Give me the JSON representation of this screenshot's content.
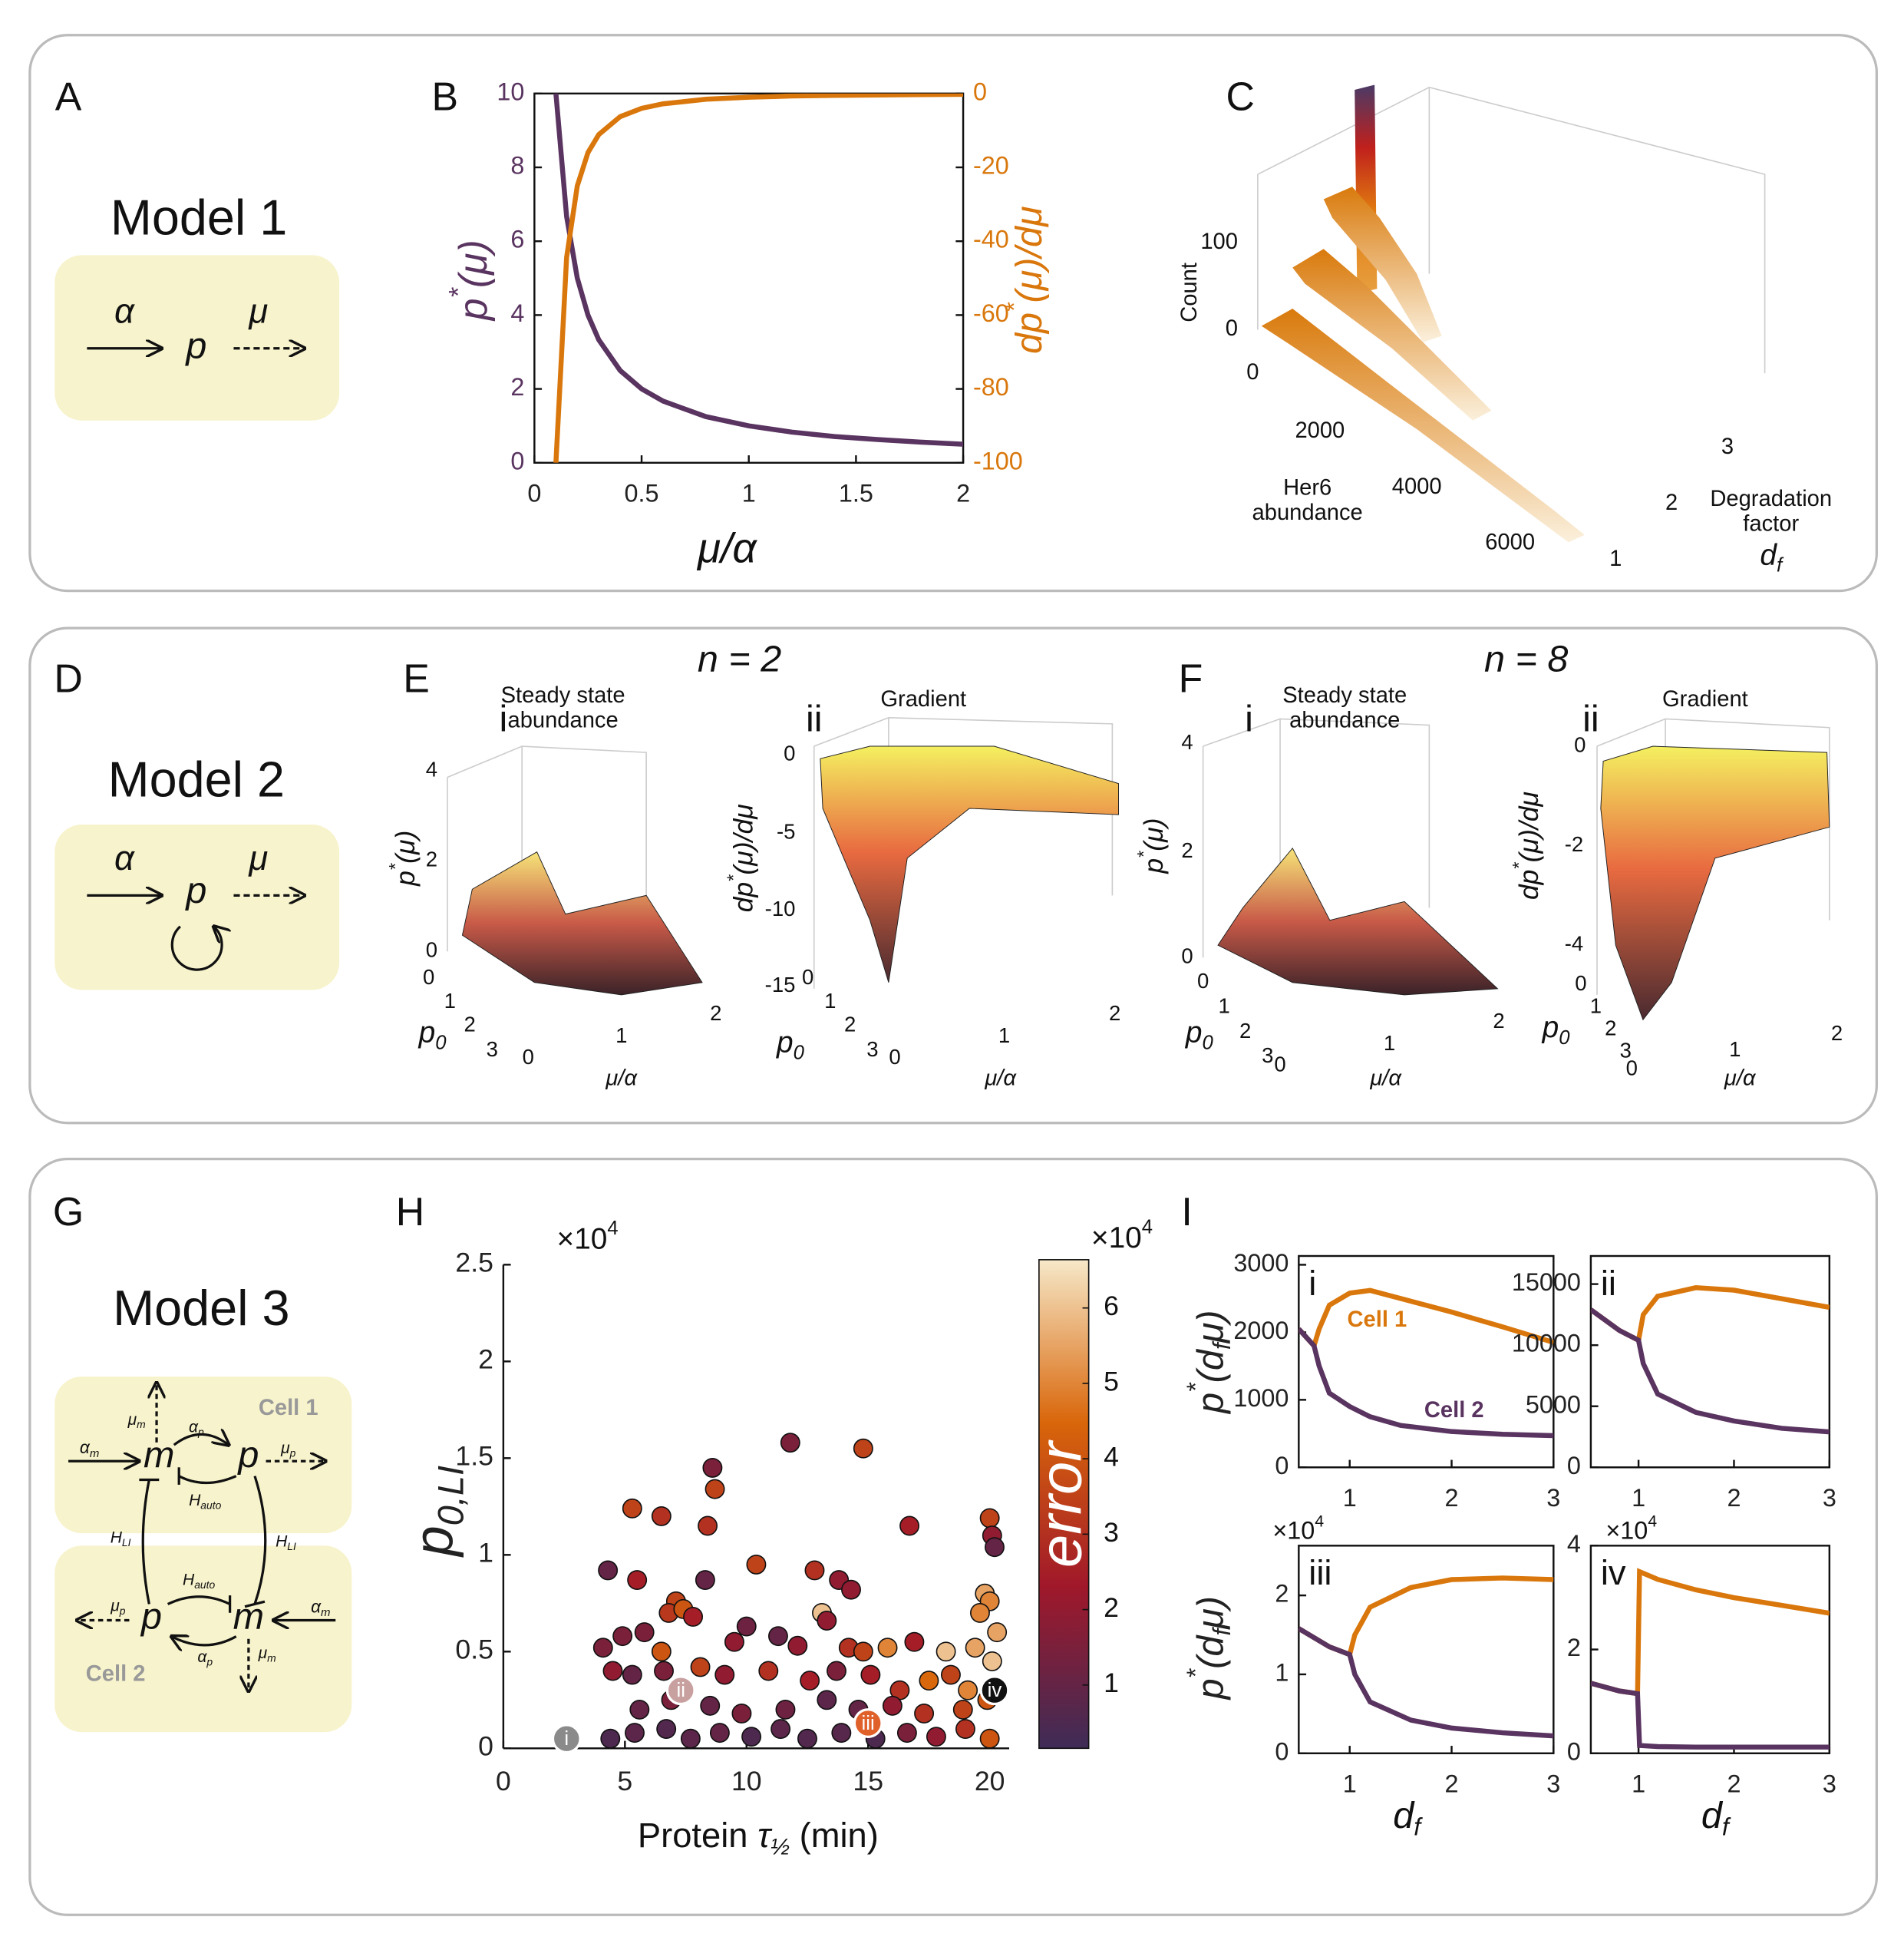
{
  "panel_labels": [
    "A",
    "B",
    "C",
    "D",
    "E",
    "F",
    "G",
    "H",
    "I"
  ],
  "models": [
    {
      "title": "Model 1",
      "labels": [
        "α",
        "p",
        "μ"
      ]
    },
    {
      "title": "Model 2",
      "labels": [
        "α",
        "p",
        "μ"
      ]
    },
    {
      "title": "Model 3",
      "cells": [
        "Cell 1",
        "Cell 2"
      ],
      "labels": [
        [
          {
            "t": "α"
          },
          {
            "t": "m",
            "s": "sub"
          }
        ],
        [
          {
            "t": "μ"
          },
          {
            "t": "m",
            "s": "sub"
          }
        ],
        "m",
        [
          {
            "t": "α"
          },
          {
            "t": "p",
            "s": "sub"
          }
        ],
        "p",
        [
          {
            "t": "μ"
          },
          {
            "t": "p",
            "s": "sub"
          }
        ],
        [
          {
            "t": "H"
          },
          {
            "t": "auto",
            "s": "sub"
          }
        ],
        [
          {
            "t": "H"
          },
          {
            "t": "LI",
            "s": "sub"
          }
        ],
        [
          {
            "t": "H"
          },
          {
            "t": "LI",
            "s": "sub"
          }
        ],
        [
          {
            "t": "H"
          },
          {
            "t": "auto",
            "s": "sub"
          }
        ],
        [
          {
            "t": "μ"
          },
          {
            "t": "p",
            "s": "sub"
          }
        ],
        "p",
        "m",
        [
          {
            "t": "α"
          },
          {
            "t": "m",
            "s": "sub"
          }
        ],
        [
          {
            "t": "α"
          },
          {
            "t": "p",
            "s": "sub"
          }
        ],
        [
          {
            "t": "μ"
          },
          {
            "t": "m",
            "s": "sub"
          }
        ]
      ]
    }
  ],
  "chart_data": [
    {
      "type": "line",
      "axis_colors": true,
      "box": true,
      "x": [
        0.1,
        0.15,
        0.2,
        0.25,
        0.3,
        0.4,
        0.5,
        0.6,
        0.8,
        1,
        1.2,
        1.4,
        1.6,
        1.8,
        2
      ],
      "series": [
        {
          "color": "#5a3460",
          "values": [
            10,
            6.67,
            5,
            4,
            3.33,
            2.5,
            2,
            1.67,
            1.25,
            1,
            0.83,
            0.71,
            0.63,
            0.56,
            0.5
          ]
        },
        {
          "color": "#d9770c",
          "axis": "y2",
          "values": [
            -100,
            -44.4,
            -25,
            -16,
            -11.1,
            -6.25,
            -4,
            -2.78,
            -1.56,
            -1,
            -0.69,
            -0.51,
            -0.39,
            -0.31,
            -0.25
          ]
        }
      ],
      "xlim": [
        0,
        2
      ],
      "xticks": [
        0,
        0.5,
        1,
        1.5,
        2
      ],
      "ylim": [
        0,
        10
      ],
      "yticks": [
        0,
        2,
        4,
        6,
        8,
        10
      ],
      "y2lim": [
        -100,
        0
      ],
      "y2ticks": [
        -100,
        -80,
        -60,
        -40,
        -20,
        0
      ],
      "xlabel": "μ/α",
      "ylabel": [
        {
          "t": "p"
        },
        {
          "t": "*",
          "s": "sup"
        },
        {
          "t": "(μ)"
        }
      ],
      "y2label": [
        {
          "t": "dp"
        },
        {
          "t": "*",
          "s": "sup"
        },
        {
          "t": "(μ)/dμ"
        }
      ]
    },
    {
      "type": "bar3d",
      "zlabel": "Count",
      "zticks": [
        0,
        100
      ],
      "xlabel": [
        "Her6",
        "abundance"
      ],
      "xticks": [
        0,
        2000,
        4000,
        6000
      ],
      "ylabel": [
        "Degradation",
        "factor"
      ],
      "ysymbol": [
        {
          "t": "d"
        },
        {
          "t": "f",
          "s": "sub"
        }
      ],
      "yticks": [
        1,
        2,
        3
      ]
    },
    {
      "type": "surface",
      "label": "i",
      "title": [
        "Steady state",
        "abundance"
      ],
      "subtitle": "n = 2",
      "zticks": [
        0,
        2,
        4
      ],
      "zlabel": [
        {
          "t": "p"
        },
        {
          "t": "*",
          "s": "sup"
        },
        {
          "t": "(μ)"
        }
      ],
      "yticks": [
        0,
        1,
        2,
        3
      ],
      "ylabel": [
        {
          "t": "p"
        },
        {
          "t": "0",
          "s": "sub"
        }
      ],
      "xticks": [
        0,
        1,
        2
      ],
      "xlabel": "μ/α"
    },
    {
      "type": "surface",
      "label": "ii",
      "title": [
        "Gradient"
      ],
      "zticks": [
        0,
        -5,
        -10,
        -15
      ],
      "zlabel": [
        {
          "t": "dp"
        },
        {
          "t": "*",
          "s": "sup"
        },
        {
          "t": "(μ)/dμ"
        }
      ],
      "yticks": [
        0,
        1,
        2,
        3
      ],
      "ylabel": [
        {
          "t": "p"
        },
        {
          "t": "0",
          "s": "sub"
        }
      ],
      "xticks": [
        0,
        1,
        2
      ],
      "xlabel": "μ/α"
    },
    {
      "type": "surface",
      "label": "i",
      "title": [
        "Steady state",
        "abundance"
      ],
      "subtitle": "n = 8",
      "zticks": [
        0,
        2,
        4
      ],
      "zlabel": [
        {
          "t": "p"
        },
        {
          "t": "*",
          "s": "sup"
        },
        {
          "t": "(μ)"
        }
      ],
      "yticks": [
        0,
        1,
        2,
        3
      ],
      "ylabel": [
        {
          "t": "p"
        },
        {
          "t": "0",
          "s": "sub"
        }
      ],
      "xticks": [
        0,
        1,
        2
      ],
      "xlabel": "μ/α"
    },
    {
      "type": "surface",
      "label": "ii",
      "title": [
        "Gradient"
      ],
      "zticks": [
        0,
        -2,
        -4
      ],
      "zlabel": [
        {
          "t": "dp"
        },
        {
          "t": "*",
          "s": "sup"
        },
        {
          "t": "(μ)/dμ"
        }
      ],
      "yticks": [
        0,
        1,
        2,
        3
      ],
      "ylabel": [
        {
          "t": "p"
        },
        {
          "t": "0",
          "s": "sub"
        }
      ],
      "xticks": [
        0,
        1,
        2
      ],
      "xlabel": "μ/α"
    },
    {
      "type": "scatter",
      "box": false,
      "x": [
        11.8,
        14.8,
        8.6,
        8.7,
        5.3,
        6.5,
        8.4,
        16.7,
        20,
        20.1,
        20.2,
        4.3,
        10.4,
        12.8,
        5.5,
        8.3,
        13.8,
        14.3,
        19.8,
        20,
        7.1,
        6.8,
        7.4,
        7.8,
        13.1,
        13.3,
        10,
        19.6,
        20.3,
        4.1,
        4.9,
        5.8,
        6.5,
        9.5,
        11.3,
        12.1,
        14.2,
        14.8,
        15.8,
        16.9,
        18.2,
        19.4,
        20.1,
        4.5,
        5.3,
        6.6,
        8.1,
        9.1,
        10.9,
        12.6,
        13.7,
        15.1,
        16.3,
        17.5,
        18.4,
        19.1,
        5.6,
        6.9,
        8.5,
        9.8,
        11.6,
        13.3,
        14.6,
        16,
        17.3,
        18.9,
        19.9,
        4.4,
        5.4,
        6.7,
        7.7,
        8.9,
        10.2,
        11.4,
        12.5,
        13.9,
        15.3,
        16.6,
        17.8,
        19,
        20
      ],
      "values": [
        1.58,
        1.55,
        1.45,
        1.34,
        1.24,
        1.2,
        1.15,
        1.15,
        1.19,
        1.1,
        1.04,
        0.92,
        0.95,
        0.92,
        0.87,
        0.87,
        0.87,
        0.82,
        0.8,
        0.76,
        0.76,
        0.7,
        0.72,
        0.68,
        0.7,
        0.66,
        0.63,
        0.7,
        0.6,
        0.52,
        0.58,
        0.6,
        0.5,
        0.55,
        0.58,
        0.53,
        0.52,
        0.5,
        0.52,
        0.55,
        0.5,
        0.52,
        0.45,
        0.4,
        0.38,
        0.4,
        0.42,
        0.38,
        0.4,
        0.35,
        0.4,
        0.38,
        0.3,
        0.35,
        0.38,
        0.3,
        0.2,
        0.25,
        0.22,
        0.18,
        0.2,
        0.25,
        0.2,
        0.22,
        0.18,
        0.2,
        0.25,
        0.05,
        0.08,
        0.1,
        0.05,
        0.08,
        0.06,
        0.1,
        0.05,
        0.08,
        0.05,
        0.08,
        0.06,
        0.1,
        0.05
      ],
      "color_values": [
        1.5,
        3.5,
        1.5,
        3.5,
        3.5,
        3,
        3,
        2.5,
        3.5,
        2,
        1,
        1,
        3.5,
        3,
        2.5,
        1,
        2,
        2,
        5.5,
        5,
        3.5,
        3.2,
        4,
        2.5,
        6,
        2,
        1.2,
        5,
        5.5,
        1.5,
        1.5,
        1.5,
        4,
        2,
        1,
        2,
        3,
        3.5,
        5,
        2.5,
        6,
        5.5,
        6,
        2,
        1,
        1.5,
        3.5,
        2,
        3,
        2.5,
        1.5,
        2.5,
        3,
        4.5,
        3.5,
        5,
        1,
        1.5,
        1,
        1.5,
        1.2,
        0.8,
        1,
        2,
        3,
        3.5,
        4,
        0.5,
        0.8,
        0.6,
        0.8,
        1,
        0.5,
        0.8,
        0.6,
        0.7,
        0.5,
        1.5,
        2,
        3,
        4
      ],
      "colormap": [
        "#3e2c57",
        "#a0182a",
        "#d9660a",
        "#f6e8c8"
      ],
      "clim": [
        0.16,
        6.64
      ],
      "cticks": [
        1,
        2,
        3,
        4,
        5,
        6
      ],
      "clabel": "error",
      "cmultiplier": [
        {
          "t": "×10"
        },
        {
          "t": "4",
          "s": "sup"
        }
      ],
      "annotations": [
        "i",
        "ii",
        "iii",
        "iv"
      ],
      "xlim": [
        0,
        20.8
      ],
      "xticks": [
        0,
        5,
        10,
        15,
        20
      ],
      "ylim": [
        0,
        2.5
      ],
      "yticks": [
        0,
        0.5,
        1,
        1.5,
        2,
        2.5
      ],
      "multiplier": [
        {
          "t": "×10"
        },
        {
          "t": "4",
          "s": "sup"
        }
      ],
      "ylabel": [
        {
          "t": "p"
        },
        {
          "t": "0,LI",
          "s": "sub"
        }
      ],
      "xlabel": [
        {
          "t": "Protein ",
          "s": "sans"
        },
        {
          "t": "τ"
        },
        {
          "t": "½",
          "s": "sub"
        },
        {
          "t": " (min)",
          "s": "sans2"
        }
      ]
    },
    {
      "type": "line",
      "box": true,
      "label": "i",
      "annotations": [
        "Cell 1",
        "Cell 2"
      ],
      "x": [
        0.5,
        0.65,
        0.7,
        0.8,
        1,
        1.2,
        1.5,
        2,
        2.5,
        3
      ],
      "series": [
        {
          "color": "#d9770c",
          "values": [
            2050,
            1800,
            2050,
            2400,
            2580,
            2620,
            2500,
            2300,
            2080,
            1850
          ]
        },
        {
          "color": "#5a3460",
          "values": [
            2050,
            1800,
            1500,
            1100,
            900,
            750,
            620,
            530,
            490,
            470
          ]
        }
      ],
      "xlim": [
        0.5,
        3
      ],
      "xticks": [
        1,
        2,
        3
      ],
      "ylim": [
        0,
        3130
      ],
      "yticks": [
        0,
        1000,
        2000,
        3000
      ],
      "ylabel": [
        {
          "t": "p"
        },
        {
          "t": "*",
          "s": "sup"
        },
        {
          "t": "(d"
        },
        {
          "t": "f",
          "s": "sub"
        },
        {
          "t": "μ)"
        }
      ]
    },
    {
      "type": "line",
      "box": true,
      "label": "ii",
      "x": [
        0.5,
        0.8,
        1,
        1.05,
        1.2,
        1.6,
        2,
        2.5,
        3
      ],
      "series": [
        {
          "color": "#d9770c",
          "values": [
            12900,
            11200,
            10400,
            12500,
            14000,
            14700,
            14500,
            13800,
            13100
          ]
        },
        {
          "color": "#5a3460",
          "values": [
            12900,
            11200,
            10400,
            8500,
            6000,
            4500,
            3800,
            3200,
            2900
          ]
        }
      ],
      "xlim": [
        0.5,
        3
      ],
      "xticks": [
        1,
        2,
        3
      ],
      "ylim": [
        0,
        17300
      ],
      "yticks": [
        0,
        5000,
        10000,
        15000
      ]
    },
    {
      "type": "line",
      "box": true,
      "label": "iii",
      "multiplier": [
        {
          "t": "×10"
        },
        {
          "t": "4",
          "s": "sup"
        }
      ],
      "x": [
        0.5,
        0.8,
        1,
        1.05,
        1.2,
        1.6,
        2,
        2.5,
        3
      ],
      "series": [
        {
          "color": "#d9770c",
          "values": [
            1.58,
            1.35,
            1.25,
            1.5,
            1.85,
            2.1,
            2.2,
            2.22,
            2.2
          ]
        },
        {
          "color": "#5a3460",
          "values": [
            1.58,
            1.35,
            1.25,
            1,
            0.65,
            0.42,
            0.32,
            0.26,
            0.22
          ]
        }
      ],
      "xlim": [
        0.5,
        3
      ],
      "xticks": [
        1,
        2,
        3
      ],
      "ylim": [
        0,
        2.63
      ],
      "yticks": [
        0,
        1,
        2
      ],
      "ylabel": [
        {
          "t": "p"
        },
        {
          "t": "*",
          "s": "sup"
        },
        {
          "t": "(d"
        },
        {
          "t": "f",
          "s": "sub"
        },
        {
          "t": "μ)"
        }
      ],
      "xlabel": [
        {
          "t": "d"
        },
        {
          "t": "f",
          "s": "sub"
        }
      ]
    },
    {
      "type": "line",
      "box": true,
      "label": "iv",
      "multiplier": [
        {
          "t": "×10"
        },
        {
          "t": "4",
          "s": "sup"
        }
      ],
      "x": [
        0.5,
        0.8,
        0.99,
        1.01,
        1.2,
        1.6,
        2,
        2.5,
        3
      ],
      "series": [
        {
          "color": "#d9770c",
          "values": [
            1.35,
            1.2,
            1.15,
            3.5,
            3.35,
            3.15,
            3,
            2.85,
            2.7
          ]
        },
        {
          "color": "#5a3460",
          "values": [
            1.35,
            1.2,
            1.15,
            0.15,
            0.13,
            0.12,
            0.12,
            0.12,
            0.12
          ]
        }
      ],
      "xlim": [
        0.5,
        3
      ],
      "xticks": [
        1,
        2,
        3
      ],
      "ylim": [
        0,
        4
      ],
      "yticks": [
        0,
        2,
        4
      ],
      "xlabel": [
        {
          "t": "d"
        },
        {
          "t": "f",
          "s": "sub"
        }
      ]
    }
  ]
}
